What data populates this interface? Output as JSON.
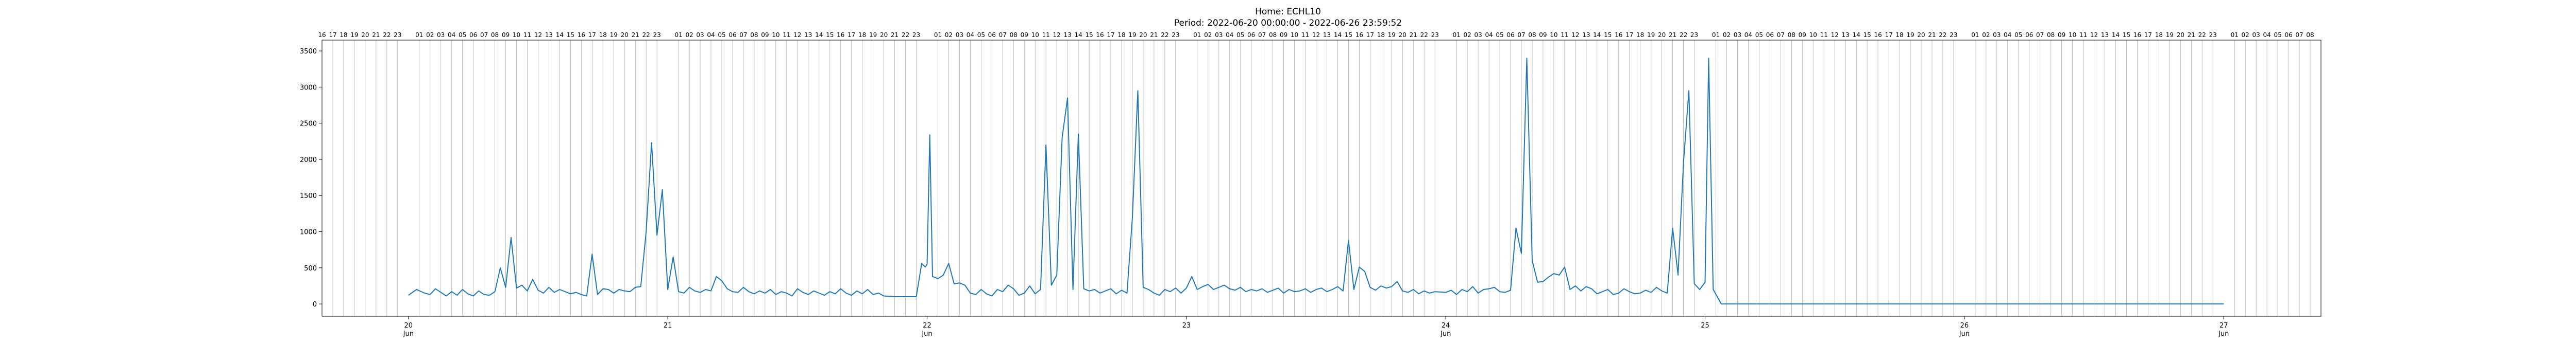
{
  "chart_data": {
    "type": "line",
    "title": "Home: ECHL10",
    "subtitle": "Period: 2022-06-20 00:00:00 - 2022-06-26 23:59:52",
    "xlabel": "",
    "ylabel": "",
    "grid": "vertical-hourly",
    "legend": "none",
    "x_range": [
      "2022-06-19 16:00",
      "2022-06-27 09:00"
    ],
    "y_range": [
      -170,
      3650
    ],
    "y_ticks": [
      0,
      500,
      1000,
      1500,
      2000,
      2500,
      3000,
      3500
    ],
    "x_ticks": [
      {
        "value": "2022-06-20",
        "day": "20",
        "month": "Jun"
      },
      {
        "value": "2022-06-21",
        "day": "21",
        "month": ""
      },
      {
        "value": "2022-06-22",
        "day": "22",
        "month": "Jun"
      },
      {
        "value": "2022-06-23",
        "day": "23",
        "month": ""
      },
      {
        "value": "2022-06-24",
        "day": "24",
        "month": "Jun"
      },
      {
        "value": "2022-06-25",
        "day": "25",
        "month": ""
      },
      {
        "value": "2022-06-26",
        "day": "26",
        "month": "Jun"
      },
      {
        "value": "2022-06-27",
        "day": "27",
        "month": "Jun"
      }
    ],
    "hour_labels_start": "2022-06-19 16:00",
    "hour_labels_end": "2022-06-27 08:00",
    "line_color": "#1f77b4",
    "series": [
      {
        "points": [
          [
            "2022-06-20 00:00",
            120
          ],
          [
            "2022-06-20 00:45",
            200
          ],
          [
            "2022-06-20 01:30",
            150
          ],
          [
            "2022-06-20 02:00",
            130
          ],
          [
            "2022-06-20 02:30",
            210
          ],
          [
            "2022-06-20 03:00",
            160
          ],
          [
            "2022-06-20 03:30",
            110
          ],
          [
            "2022-06-20 04:00",
            170
          ],
          [
            "2022-06-20 04:30",
            120
          ],
          [
            "2022-06-20 05:00",
            200
          ],
          [
            "2022-06-20 05:30",
            140
          ],
          [
            "2022-06-20 06:00",
            110
          ],
          [
            "2022-06-20 06:30",
            180
          ],
          [
            "2022-06-20 07:00",
            130
          ],
          [
            "2022-06-20 07:30",
            120
          ],
          [
            "2022-06-20 08:00",
            170
          ],
          [
            "2022-06-20 08:30",
            500
          ],
          [
            "2022-06-20 09:00",
            230
          ],
          [
            "2022-06-20 09:30",
            920
          ],
          [
            "2022-06-20 10:00",
            220
          ],
          [
            "2022-06-20 10:30",
            260
          ],
          [
            "2022-06-20 11:00",
            180
          ],
          [
            "2022-06-20 11:30",
            340
          ],
          [
            "2022-06-20 12:00",
            190
          ],
          [
            "2022-06-20 12:30",
            150
          ],
          [
            "2022-06-20 13:00",
            230
          ],
          [
            "2022-06-20 13:30",
            160
          ],
          [
            "2022-06-20 14:00",
            200
          ],
          [
            "2022-06-20 14:30",
            170
          ],
          [
            "2022-06-20 15:00",
            140
          ],
          [
            "2022-06-20 15:30",
            160
          ],
          [
            "2022-06-20 16:00",
            130
          ],
          [
            "2022-06-20 16:30",
            110
          ],
          [
            "2022-06-20 17:00",
            690
          ],
          [
            "2022-06-20 17:30",
            130
          ],
          [
            "2022-06-20 18:00",
            210
          ],
          [
            "2022-06-20 18:30",
            200
          ],
          [
            "2022-06-20 19:00",
            150
          ],
          [
            "2022-06-20 19:30",
            200
          ],
          [
            "2022-06-20 20:00",
            180
          ],
          [
            "2022-06-20 20:30",
            170
          ],
          [
            "2022-06-20 21:00",
            230
          ],
          [
            "2022-06-20 21:30",
            240
          ],
          [
            "2022-06-20 22:00",
            1000
          ],
          [
            "2022-06-20 22:30",
            2230
          ],
          [
            "2022-06-20 23:00",
            950
          ],
          [
            "2022-06-20 23:30",
            1580
          ],
          [
            "2022-06-21 00:00",
            200
          ],
          [
            "2022-06-21 00:30",
            650
          ],
          [
            "2022-06-21 01:00",
            170
          ],
          [
            "2022-06-21 01:30",
            150
          ],
          [
            "2022-06-21 02:00",
            230
          ],
          [
            "2022-06-21 02:30",
            180
          ],
          [
            "2022-06-21 03:00",
            160
          ],
          [
            "2022-06-21 03:30",
            200
          ],
          [
            "2022-06-21 04:00",
            180
          ],
          [
            "2022-06-21 04:30",
            380
          ],
          [
            "2022-06-21 05:00",
            320
          ],
          [
            "2022-06-21 05:30",
            210
          ],
          [
            "2022-06-21 06:00",
            170
          ],
          [
            "2022-06-21 06:30",
            160
          ],
          [
            "2022-06-21 07:00",
            230
          ],
          [
            "2022-06-21 07:30",
            170
          ],
          [
            "2022-06-21 08:00",
            140
          ],
          [
            "2022-06-21 08:30",
            180
          ],
          [
            "2022-06-21 09:00",
            150
          ],
          [
            "2022-06-21 09:30",
            200
          ],
          [
            "2022-06-21 10:00",
            130
          ],
          [
            "2022-06-21 10:30",
            170
          ],
          [
            "2022-06-21 11:00",
            150
          ],
          [
            "2022-06-21 11:30",
            110
          ],
          [
            "2022-06-21 12:00",
            210
          ],
          [
            "2022-06-21 12:30",
            160
          ],
          [
            "2022-06-21 13:00",
            130
          ],
          [
            "2022-06-21 13:30",
            180
          ],
          [
            "2022-06-21 14:00",
            150
          ],
          [
            "2022-06-21 14:30",
            120
          ],
          [
            "2022-06-21 15:00",
            170
          ],
          [
            "2022-06-21 15:30",
            140
          ],
          [
            "2022-06-21 16:00",
            210
          ],
          [
            "2022-06-21 16:30",
            150
          ],
          [
            "2022-06-21 17:00",
            120
          ],
          [
            "2022-06-21 17:30",
            180
          ],
          [
            "2022-06-21 18:00",
            140
          ],
          [
            "2022-06-21 18:30",
            200
          ],
          [
            "2022-06-21 19:00",
            130
          ],
          [
            "2022-06-21 19:30",
            150
          ],
          [
            "2022-06-21 20:00",
            110
          ],
          [
            "2022-06-21 21:00",
            100
          ],
          [
            "2022-06-21 22:00",
            100
          ],
          [
            "2022-06-21 23:00",
            100
          ],
          [
            "2022-06-21 23:30",
            560
          ],
          [
            "2022-06-21 23:50",
            510
          ],
          [
            "2022-06-22 00:00",
            550
          ],
          [
            "2022-06-22 00:15",
            2340
          ],
          [
            "2022-06-22 00:30",
            380
          ],
          [
            "2022-06-22 01:00",
            350
          ],
          [
            "2022-06-22 01:30",
            400
          ],
          [
            "2022-06-22 02:00",
            560
          ],
          [
            "2022-06-22 02:30",
            280
          ],
          [
            "2022-06-22 03:00",
            290
          ],
          [
            "2022-06-22 03:30",
            260
          ],
          [
            "2022-06-22 04:00",
            150
          ],
          [
            "2022-06-22 04:30",
            130
          ],
          [
            "2022-06-22 05:00",
            200
          ],
          [
            "2022-06-22 05:30",
            140
          ],
          [
            "2022-06-22 06:00",
            110
          ],
          [
            "2022-06-22 06:30",
            200
          ],
          [
            "2022-06-22 07:00",
            170
          ],
          [
            "2022-06-22 07:30",
            260
          ],
          [
            "2022-06-22 08:00",
            210
          ],
          [
            "2022-06-22 08:30",
            120
          ],
          [
            "2022-06-22 09:00",
            150
          ],
          [
            "2022-06-22 09:30",
            250
          ],
          [
            "2022-06-22 10:00",
            140
          ],
          [
            "2022-06-22 10:30",
            200
          ],
          [
            "2022-06-22 11:00",
            2200
          ],
          [
            "2022-06-22 11:30",
            260
          ],
          [
            "2022-06-22 12:00",
            400
          ],
          [
            "2022-06-22 12:30",
            2300
          ],
          [
            "2022-06-22 13:00",
            2850
          ],
          [
            "2022-06-22 13:30",
            200
          ],
          [
            "2022-06-22 14:00",
            2350
          ],
          [
            "2022-06-22 14:30",
            210
          ],
          [
            "2022-06-22 15:00",
            180
          ],
          [
            "2022-06-22 15:30",
            200
          ],
          [
            "2022-06-22 16:00",
            150
          ],
          [
            "2022-06-22 16:30",
            180
          ],
          [
            "2022-06-22 17:00",
            210
          ],
          [
            "2022-06-22 17:30",
            140
          ],
          [
            "2022-06-22 18:00",
            190
          ],
          [
            "2022-06-22 18:30",
            150
          ],
          [
            "2022-06-22 19:00",
            1200
          ],
          [
            "2022-06-22 19:30",
            2950
          ],
          [
            "2022-06-22 20:00",
            230
          ],
          [
            "2022-06-22 20:30",
            200
          ],
          [
            "2022-06-22 21:00",
            150
          ],
          [
            "2022-06-22 21:30",
            120
          ],
          [
            "2022-06-22 22:00",
            200
          ],
          [
            "2022-06-22 22:30",
            170
          ],
          [
            "2022-06-22 23:00",
            220
          ],
          [
            "2022-06-22 23:30",
            150
          ],
          [
            "2022-06-23 00:00",
            220
          ],
          [
            "2022-06-23 00:30",
            380
          ],
          [
            "2022-06-23 01:00",
            200
          ],
          [
            "2022-06-23 01:30",
            240
          ],
          [
            "2022-06-23 02:00",
            270
          ],
          [
            "2022-06-23 02:30",
            200
          ],
          [
            "2022-06-23 03:00",
            230
          ],
          [
            "2022-06-23 03:30",
            260
          ],
          [
            "2022-06-23 04:00",
            210
          ],
          [
            "2022-06-23 04:30",
            190
          ],
          [
            "2022-06-23 05:00",
            230
          ],
          [
            "2022-06-23 05:30",
            170
          ],
          [
            "2022-06-23 06:00",
            200
          ],
          [
            "2022-06-23 06:30",
            180
          ],
          [
            "2022-06-23 07:00",
            210
          ],
          [
            "2022-06-23 07:30",
            160
          ],
          [
            "2022-06-23 08:00",
            190
          ],
          [
            "2022-06-23 08:30",
            220
          ],
          [
            "2022-06-23 09:00",
            150
          ],
          [
            "2022-06-23 09:30",
            200
          ],
          [
            "2022-06-23 10:00",
            170
          ],
          [
            "2022-06-23 10:30",
            180
          ],
          [
            "2022-06-23 11:00",
            210
          ],
          [
            "2022-06-23 11:30",
            160
          ],
          [
            "2022-06-23 12:00",
            200
          ],
          [
            "2022-06-23 12:30",
            220
          ],
          [
            "2022-06-23 13:00",
            170
          ],
          [
            "2022-06-23 13:30",
            200
          ],
          [
            "2022-06-23 14:00",
            240
          ],
          [
            "2022-06-23 14:30",
            180
          ],
          [
            "2022-06-23 15:00",
            880
          ],
          [
            "2022-06-23 15:30",
            200
          ],
          [
            "2022-06-23 16:00",
            510
          ],
          [
            "2022-06-23 16:30",
            450
          ],
          [
            "2022-06-23 17:00",
            230
          ],
          [
            "2022-06-23 17:30",
            190
          ],
          [
            "2022-06-23 18:00",
            250
          ],
          [
            "2022-06-23 18:30",
            220
          ],
          [
            "2022-06-23 19:00",
            240
          ],
          [
            "2022-06-23 19:30",
            310
          ],
          [
            "2022-06-23 20:00",
            180
          ],
          [
            "2022-06-23 20:30",
            160
          ],
          [
            "2022-06-23 21:00",
            200
          ],
          [
            "2022-06-23 21:30",
            140
          ],
          [
            "2022-06-23 22:00",
            180
          ],
          [
            "2022-06-23 22:30",
            150
          ],
          [
            "2022-06-23 23:00",
            170
          ],
          [
            "2022-06-24 00:00",
            160
          ],
          [
            "2022-06-24 00:30",
            190
          ],
          [
            "2022-06-24 01:00",
            130
          ],
          [
            "2022-06-24 01:30",
            200
          ],
          [
            "2022-06-24 02:00",
            170
          ],
          [
            "2022-06-24 02:30",
            240
          ],
          [
            "2022-06-24 03:00",
            150
          ],
          [
            "2022-06-24 03:30",
            200
          ],
          [
            "2022-06-24 04:00",
            210
          ],
          [
            "2022-06-24 04:30",
            230
          ],
          [
            "2022-06-24 05:00",
            170
          ],
          [
            "2022-06-24 05:30",
            160
          ],
          [
            "2022-06-24 06:00",
            190
          ],
          [
            "2022-06-24 06:30",
            1050
          ],
          [
            "2022-06-24 07:00",
            700
          ],
          [
            "2022-06-24 07:30",
            3400
          ],
          [
            "2022-06-24 08:00",
            600
          ],
          [
            "2022-06-24 08:30",
            300
          ],
          [
            "2022-06-24 09:00",
            310
          ],
          [
            "2022-06-24 09:30",
            370
          ],
          [
            "2022-06-24 10:00",
            420
          ],
          [
            "2022-06-24 10:30",
            400
          ],
          [
            "2022-06-24 11:00",
            510
          ],
          [
            "2022-06-24 11:30",
            200
          ],
          [
            "2022-06-24 12:00",
            250
          ],
          [
            "2022-06-24 12:30",
            180
          ],
          [
            "2022-06-24 13:00",
            240
          ],
          [
            "2022-06-24 13:30",
            210
          ],
          [
            "2022-06-24 14:00",
            140
          ],
          [
            "2022-06-24 14:30",
            170
          ],
          [
            "2022-06-24 15:00",
            200
          ],
          [
            "2022-06-24 15:30",
            130
          ],
          [
            "2022-06-24 16:00",
            150
          ],
          [
            "2022-06-24 16:30",
            210
          ],
          [
            "2022-06-24 17:00",
            170
          ],
          [
            "2022-06-24 17:30",
            140
          ],
          [
            "2022-06-24 18:00",
            150
          ],
          [
            "2022-06-24 18:30",
            190
          ],
          [
            "2022-06-24 19:00",
            160
          ],
          [
            "2022-06-24 19:30",
            230
          ],
          [
            "2022-06-24 20:00",
            180
          ],
          [
            "2022-06-24 20:30",
            150
          ],
          [
            "2022-06-24 21:00",
            1050
          ],
          [
            "2022-06-24 21:30",
            400
          ],
          [
            "2022-06-24 22:00",
            1950
          ],
          [
            "2022-06-24 22:30",
            2950
          ],
          [
            "2022-06-24 23:00",
            280
          ],
          [
            "2022-06-24 23:30",
            200
          ],
          [
            "2022-06-25 00:00",
            300
          ],
          [
            "2022-06-25 00:20",
            3400
          ],
          [
            "2022-06-25 00:45",
            200
          ],
          [
            "2022-06-25 01:30",
            0
          ],
          [
            "2022-06-27 00:00",
            0
          ]
        ]
      }
    ]
  }
}
